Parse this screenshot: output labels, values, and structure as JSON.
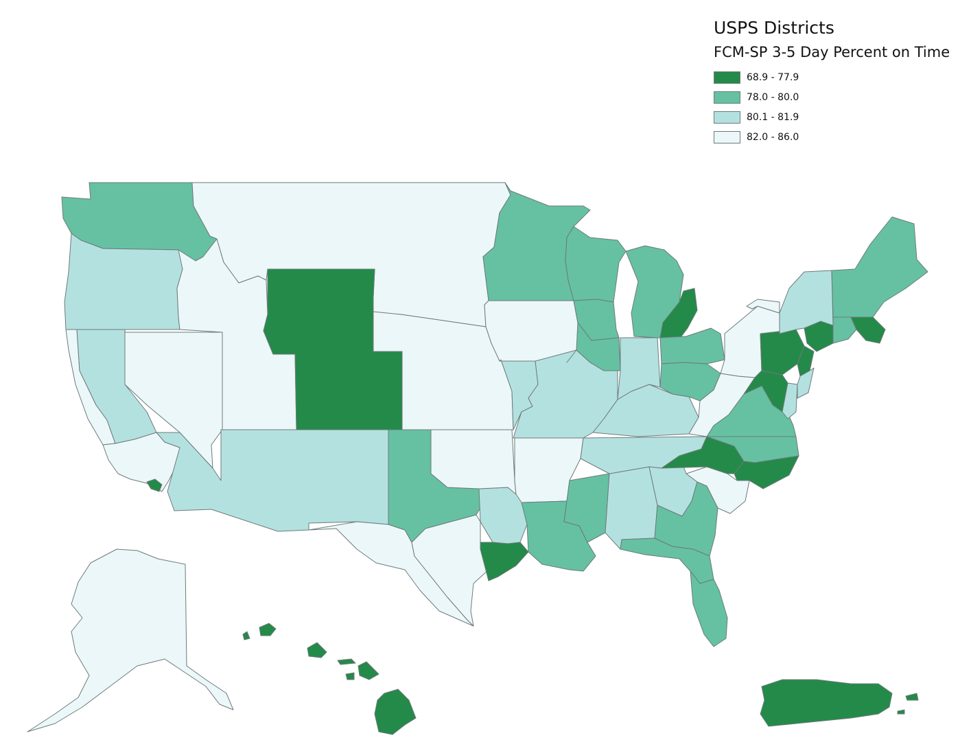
{
  "legend": {
    "title": "USPS Districts",
    "subtitle": "FCM-SP 3-5 Day Percent on Time",
    "classes": [
      {
        "label": "68.9 - 77.9",
        "color": "#248a49"
      },
      {
        "label": "78.0 - 80.0",
        "color": "#65c1a2"
      },
      {
        "label": "80.1 - 81.9",
        "color": "#b3e1e0"
      },
      {
        "label": "82.0 - 86.0",
        "color": "#ebf7f8"
      }
    ]
  },
  "stroke_color": "#6e7a7a",
  "districts": [
    {
      "name": "washington",
      "class": 1
    },
    {
      "name": "oregon",
      "class": 2
    },
    {
      "name": "california-north",
      "class": 3
    },
    {
      "name": "california-central",
      "class": 2
    },
    {
      "name": "california-south",
      "class": 3
    },
    {
      "name": "los-angeles",
      "class": 0
    },
    {
      "name": "nevada",
      "class": 3
    },
    {
      "name": "arizona",
      "class": 2
    },
    {
      "name": "idaho-utah",
      "class": 3
    },
    {
      "name": "montana-dakotas",
      "class": 3
    },
    {
      "name": "wyoming-colorado",
      "class": 0
    },
    {
      "name": "new-mexico",
      "class": 2
    },
    {
      "name": "texas-west",
      "class": 3
    },
    {
      "name": "texas-north",
      "class": 1
    },
    {
      "name": "texas-northeast",
      "class": 2
    },
    {
      "name": "texas-central",
      "class": 3
    },
    {
      "name": "houston",
      "class": 0
    },
    {
      "name": "oklahoma",
      "class": 3
    },
    {
      "name": "kansas-nebraska",
      "class": 3
    },
    {
      "name": "minnesota",
      "class": 1
    },
    {
      "name": "iowa",
      "class": 3
    },
    {
      "name": "missouri-kansas-city",
      "class": 2
    },
    {
      "name": "missouri-st-louis",
      "class": 2
    },
    {
      "name": "arkansas",
      "class": 3
    },
    {
      "name": "louisiana",
      "class": 1
    },
    {
      "name": "mississippi",
      "class": 1
    },
    {
      "name": "alabama",
      "class": 2
    },
    {
      "name": "tennessee",
      "class": 2
    },
    {
      "name": "kentucky",
      "class": 2
    },
    {
      "name": "wisconsin",
      "class": 1
    },
    {
      "name": "illinois-north",
      "class": 1
    },
    {
      "name": "illinois-central",
      "class": 1
    },
    {
      "name": "indiana",
      "class": 2
    },
    {
      "name": "michigan",
      "class": 1
    },
    {
      "name": "detroit",
      "class": 0
    },
    {
      "name": "ohio-north",
      "class": 1
    },
    {
      "name": "ohio-south",
      "class": 1
    },
    {
      "name": "georgia-atlanta",
      "class": 2
    },
    {
      "name": "georgia-south",
      "class": 1
    },
    {
      "name": "florida",
      "class": 1
    },
    {
      "name": "south-florida",
      "class": 1
    },
    {
      "name": "south-carolina",
      "class": 3
    },
    {
      "name": "north-carolina-west",
      "class": 0
    },
    {
      "name": "north-carolina-mid",
      "class": 1
    },
    {
      "name": "north-carolina-east",
      "class": 0
    },
    {
      "name": "virginia",
      "class": 1
    },
    {
      "name": "west-virginia",
      "class": 3
    },
    {
      "name": "western-pennsylvania",
      "class": 3
    },
    {
      "name": "pennsylvania-east",
      "class": 0
    },
    {
      "name": "maryland",
      "class": 0
    },
    {
      "name": "delmarva",
      "class": 2
    },
    {
      "name": "new-jersey",
      "class": 0
    },
    {
      "name": "new-jersey-south",
      "class": 2
    },
    {
      "name": "new-york-city",
      "class": 0
    },
    {
      "name": "new-york-upstate",
      "class": 2
    },
    {
      "name": "new-york-west",
      "class": 3
    },
    {
      "name": "connecticut",
      "class": 1
    },
    {
      "name": "massachusetts",
      "class": 0
    },
    {
      "name": "northern-new-england",
      "class": 1
    },
    {
      "name": "alaska",
      "class": 3
    },
    {
      "name": "hawaii",
      "class": 0
    },
    {
      "name": "puerto-rico",
      "class": 0
    }
  ]
}
